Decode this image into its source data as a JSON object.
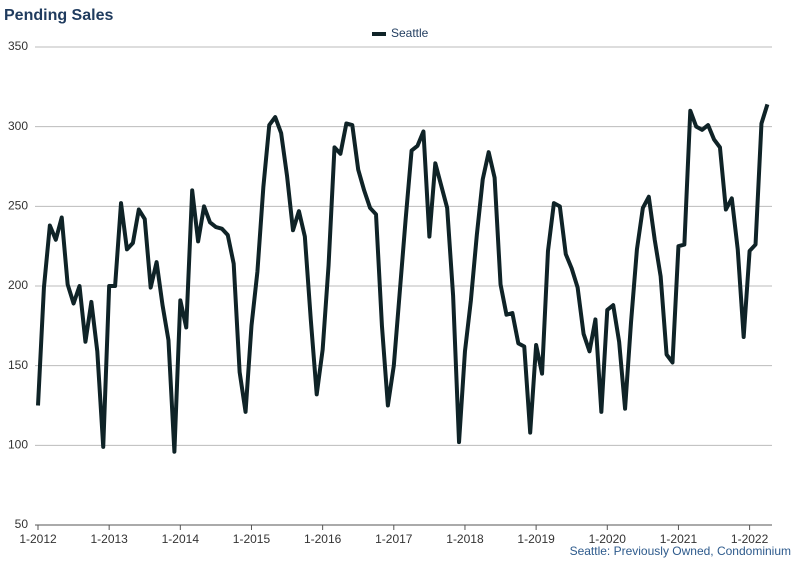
{
  "chart_data": {
    "type": "line",
    "title": "Pending Sales",
    "note": "Seattle: Previously Owned, Condominium",
    "categories": [
      "1-2012",
      null,
      null,
      null,
      null,
      null,
      null,
      null,
      null,
      null,
      null,
      null,
      "1-2013",
      null,
      null,
      null,
      null,
      null,
      null,
      null,
      null,
      null,
      null,
      null,
      "1-2014",
      null,
      null,
      null,
      null,
      null,
      null,
      null,
      null,
      null,
      null,
      null,
      "1-2015",
      null,
      null,
      null,
      null,
      null,
      null,
      null,
      null,
      null,
      null,
      null,
      "1-2016",
      null,
      null,
      null,
      null,
      null,
      null,
      null,
      null,
      null,
      null,
      null,
      "1-2017",
      null,
      null,
      null,
      null,
      null,
      null,
      null,
      null,
      null,
      null,
      null,
      "1-2018",
      null,
      null,
      null,
      null,
      null,
      null,
      null,
      null,
      null,
      null,
      null,
      "1-2019",
      null,
      null,
      null,
      null,
      null,
      null,
      null,
      null,
      null,
      null,
      null,
      "1-2020",
      null,
      null,
      null,
      null,
      null,
      null,
      null,
      null,
      null,
      null,
      null,
      "1-2021",
      null,
      null,
      null,
      null,
      null,
      null,
      null,
      null,
      null,
      null,
      null,
      "1-2022",
      null,
      null,
      null
    ],
    "series": [
      {
        "name": "Seattle",
        "color": "#0f2327",
        "values": [
          125,
          199,
          238,
          229,
          243,
          201,
          189,
          200,
          165,
          190,
          159,
          99,
          200,
          200,
          252,
          223,
          227,
          248,
          242,
          199,
          215,
          188,
          166,
          96,
          191,
          174,
          260,
          228,
          250,
          240,
          237,
          236,
          232,
          214,
          146,
          121,
          175,
          209,
          262,
          301,
          306,
          296,
          269,
          235,
          247,
          231,
          179,
          132,
          160,
          213,
          287,
          283,
          302,
          301,
          273,
          260,
          249,
          245,
          175,
          125,
          150,
          196,
          242,
          285,
          288,
          297,
          231,
          277,
          263,
          249,
          194,
          102,
          159,
          191,
          232,
          267,
          284,
          268,
          201,
          182,
          183,
          164,
          162,
          108,
          163,
          145,
          222,
          252,
          250,
          220,
          211,
          199,
          170,
          159,
          179,
          121,
          185,
          188,
          165,
          123,
          177,
          223,
          249,
          256,
          229,
          206,
          157,
          152,
          225,
          226,
          310,
          300,
          298,
          301,
          292,
          287,
          248,
          255,
          223,
          168,
          222,
          226,
          302,
          314
        ]
      }
    ],
    "ylim": [
      50,
      350
    ],
    "yticks": [
      50,
      100,
      150,
      200,
      250,
      300,
      350
    ],
    "grid": true
  }
}
